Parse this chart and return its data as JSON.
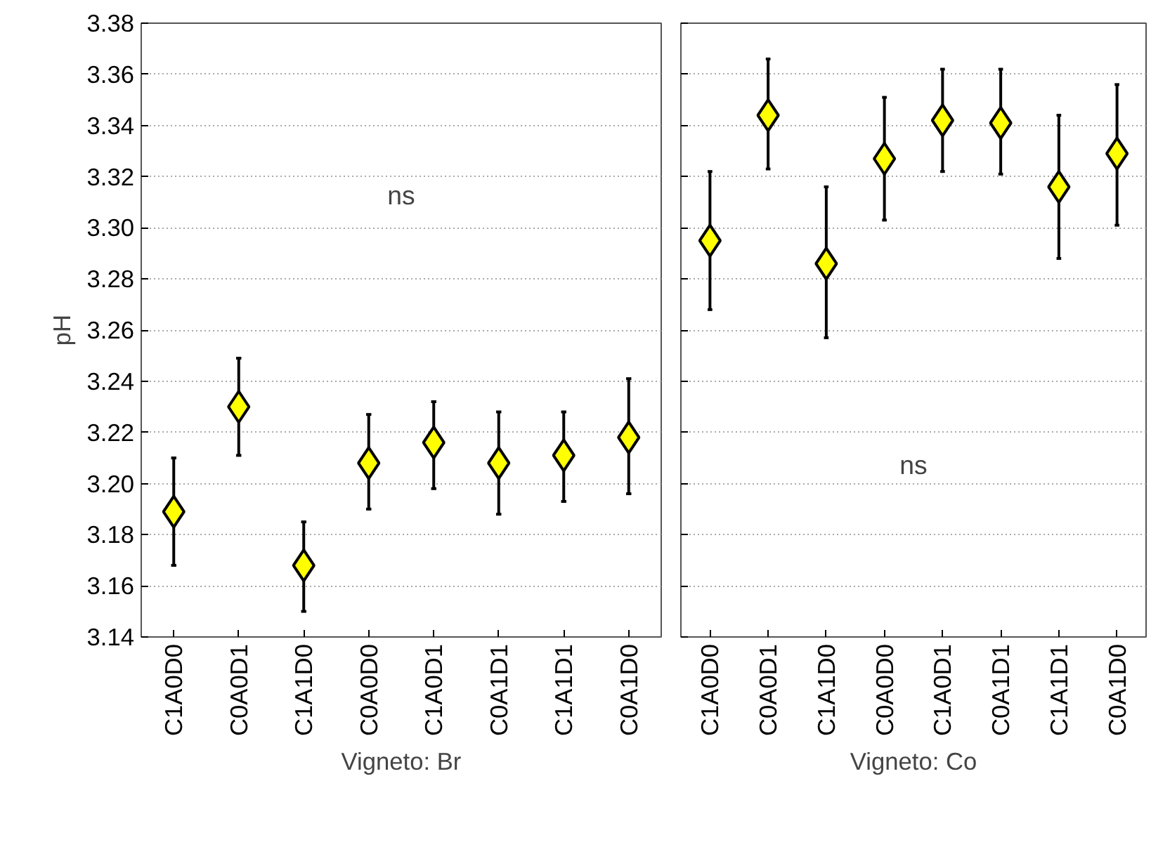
{
  "chart_data": [
    {
      "type": "scatter",
      "xlabel": "Vigneto: Br",
      "ylabel": "pH",
      "categories": [
        "C1A0D0",
        "C0A0D1",
        "C1A1D0",
        "C0A0D0",
        "C1A0D1",
        "C0A1D1",
        "C1A1D1",
        "C0A1D0"
      ],
      "values": [
        3.189,
        3.23,
        3.168,
        3.208,
        3.216,
        3.208,
        3.211,
        3.218
      ],
      "errors": [
        [
          3.168,
          3.21
        ],
        [
          3.211,
          3.249
        ],
        [
          3.15,
          3.185
        ],
        [
          3.19,
          3.227
        ],
        [
          3.198,
          3.232
        ],
        [
          3.188,
          3.228
        ],
        [
          3.193,
          3.228
        ],
        [
          3.196,
          3.241
        ]
      ],
      "color": "#ffff00",
      "marker": "diamond",
      "grid": "y",
      "ylim": [
        3.14,
        3.38
      ],
      "yticks": [
        {
          "value": 3.14,
          "label": "3.14"
        },
        {
          "value": 3.16,
          "label": "3.16"
        },
        {
          "value": 3.18,
          "label": "3.18"
        },
        {
          "value": 3.2,
          "label": "3.20"
        },
        {
          "value": 3.22,
          "label": "3.22"
        },
        {
          "value": 3.24,
          "label": "3.24"
        },
        {
          "value": 3.26,
          "label": "3.26"
        },
        {
          "value": 3.28,
          "label": "3.28"
        },
        {
          "value": 3.3,
          "label": "3.30"
        },
        {
          "value": 3.32,
          "label": "3.32"
        },
        {
          "value": 3.34,
          "label": "3.34"
        },
        {
          "value": 3.36,
          "label": "3.36"
        },
        {
          "value": 3.38,
          "label": "3.38"
        }
      ],
      "annotations": [
        "ns"
      ]
    },
    {
      "type": "scatter",
      "xlabel": "Vigneto: Co",
      "categories": [
        "C1A0D0",
        "C0A0D1",
        "C1A1D0",
        "C0A0D0",
        "C1A0D1",
        "C0A1D1",
        "C1A1D1",
        "C0A1D0"
      ],
      "values": [
        3.295,
        3.344,
        3.286,
        3.327,
        3.342,
        3.341,
        3.316,
        3.329
      ],
      "errors": [
        [
          3.268,
          3.322
        ],
        [
          3.323,
          3.366
        ],
        [
          3.257,
          3.316
        ],
        [
          3.303,
          3.351
        ],
        [
          3.322,
          3.362
        ],
        [
          3.321,
          3.362
        ],
        [
          3.288,
          3.344
        ],
        [
          3.301,
          3.356
        ]
      ],
      "color": "#ffff00",
      "marker": "diamond",
      "grid": "y",
      "tick_labels": "x",
      "ylim": [
        3.14,
        3.38
      ],
      "yticks": [
        {
          "value": 3.14,
          "label": null
        },
        {
          "value": 3.16,
          "label": null
        },
        {
          "value": 3.18,
          "label": null
        },
        {
          "value": 3.2,
          "label": null
        },
        {
          "value": 3.22,
          "label": null
        },
        {
          "value": 3.24,
          "label": null
        },
        {
          "value": 3.26,
          "label": null
        },
        {
          "value": 3.28,
          "label": null
        },
        {
          "value": 3.3,
          "label": null
        },
        {
          "value": 3.32,
          "label": null
        },
        {
          "value": 3.34,
          "label": null
        },
        {
          "value": 3.36,
          "label": null
        },
        {
          "value": 3.38,
          "label": null
        }
      ],
      "annotations": [
        "ns"
      ]
    }
  ]
}
